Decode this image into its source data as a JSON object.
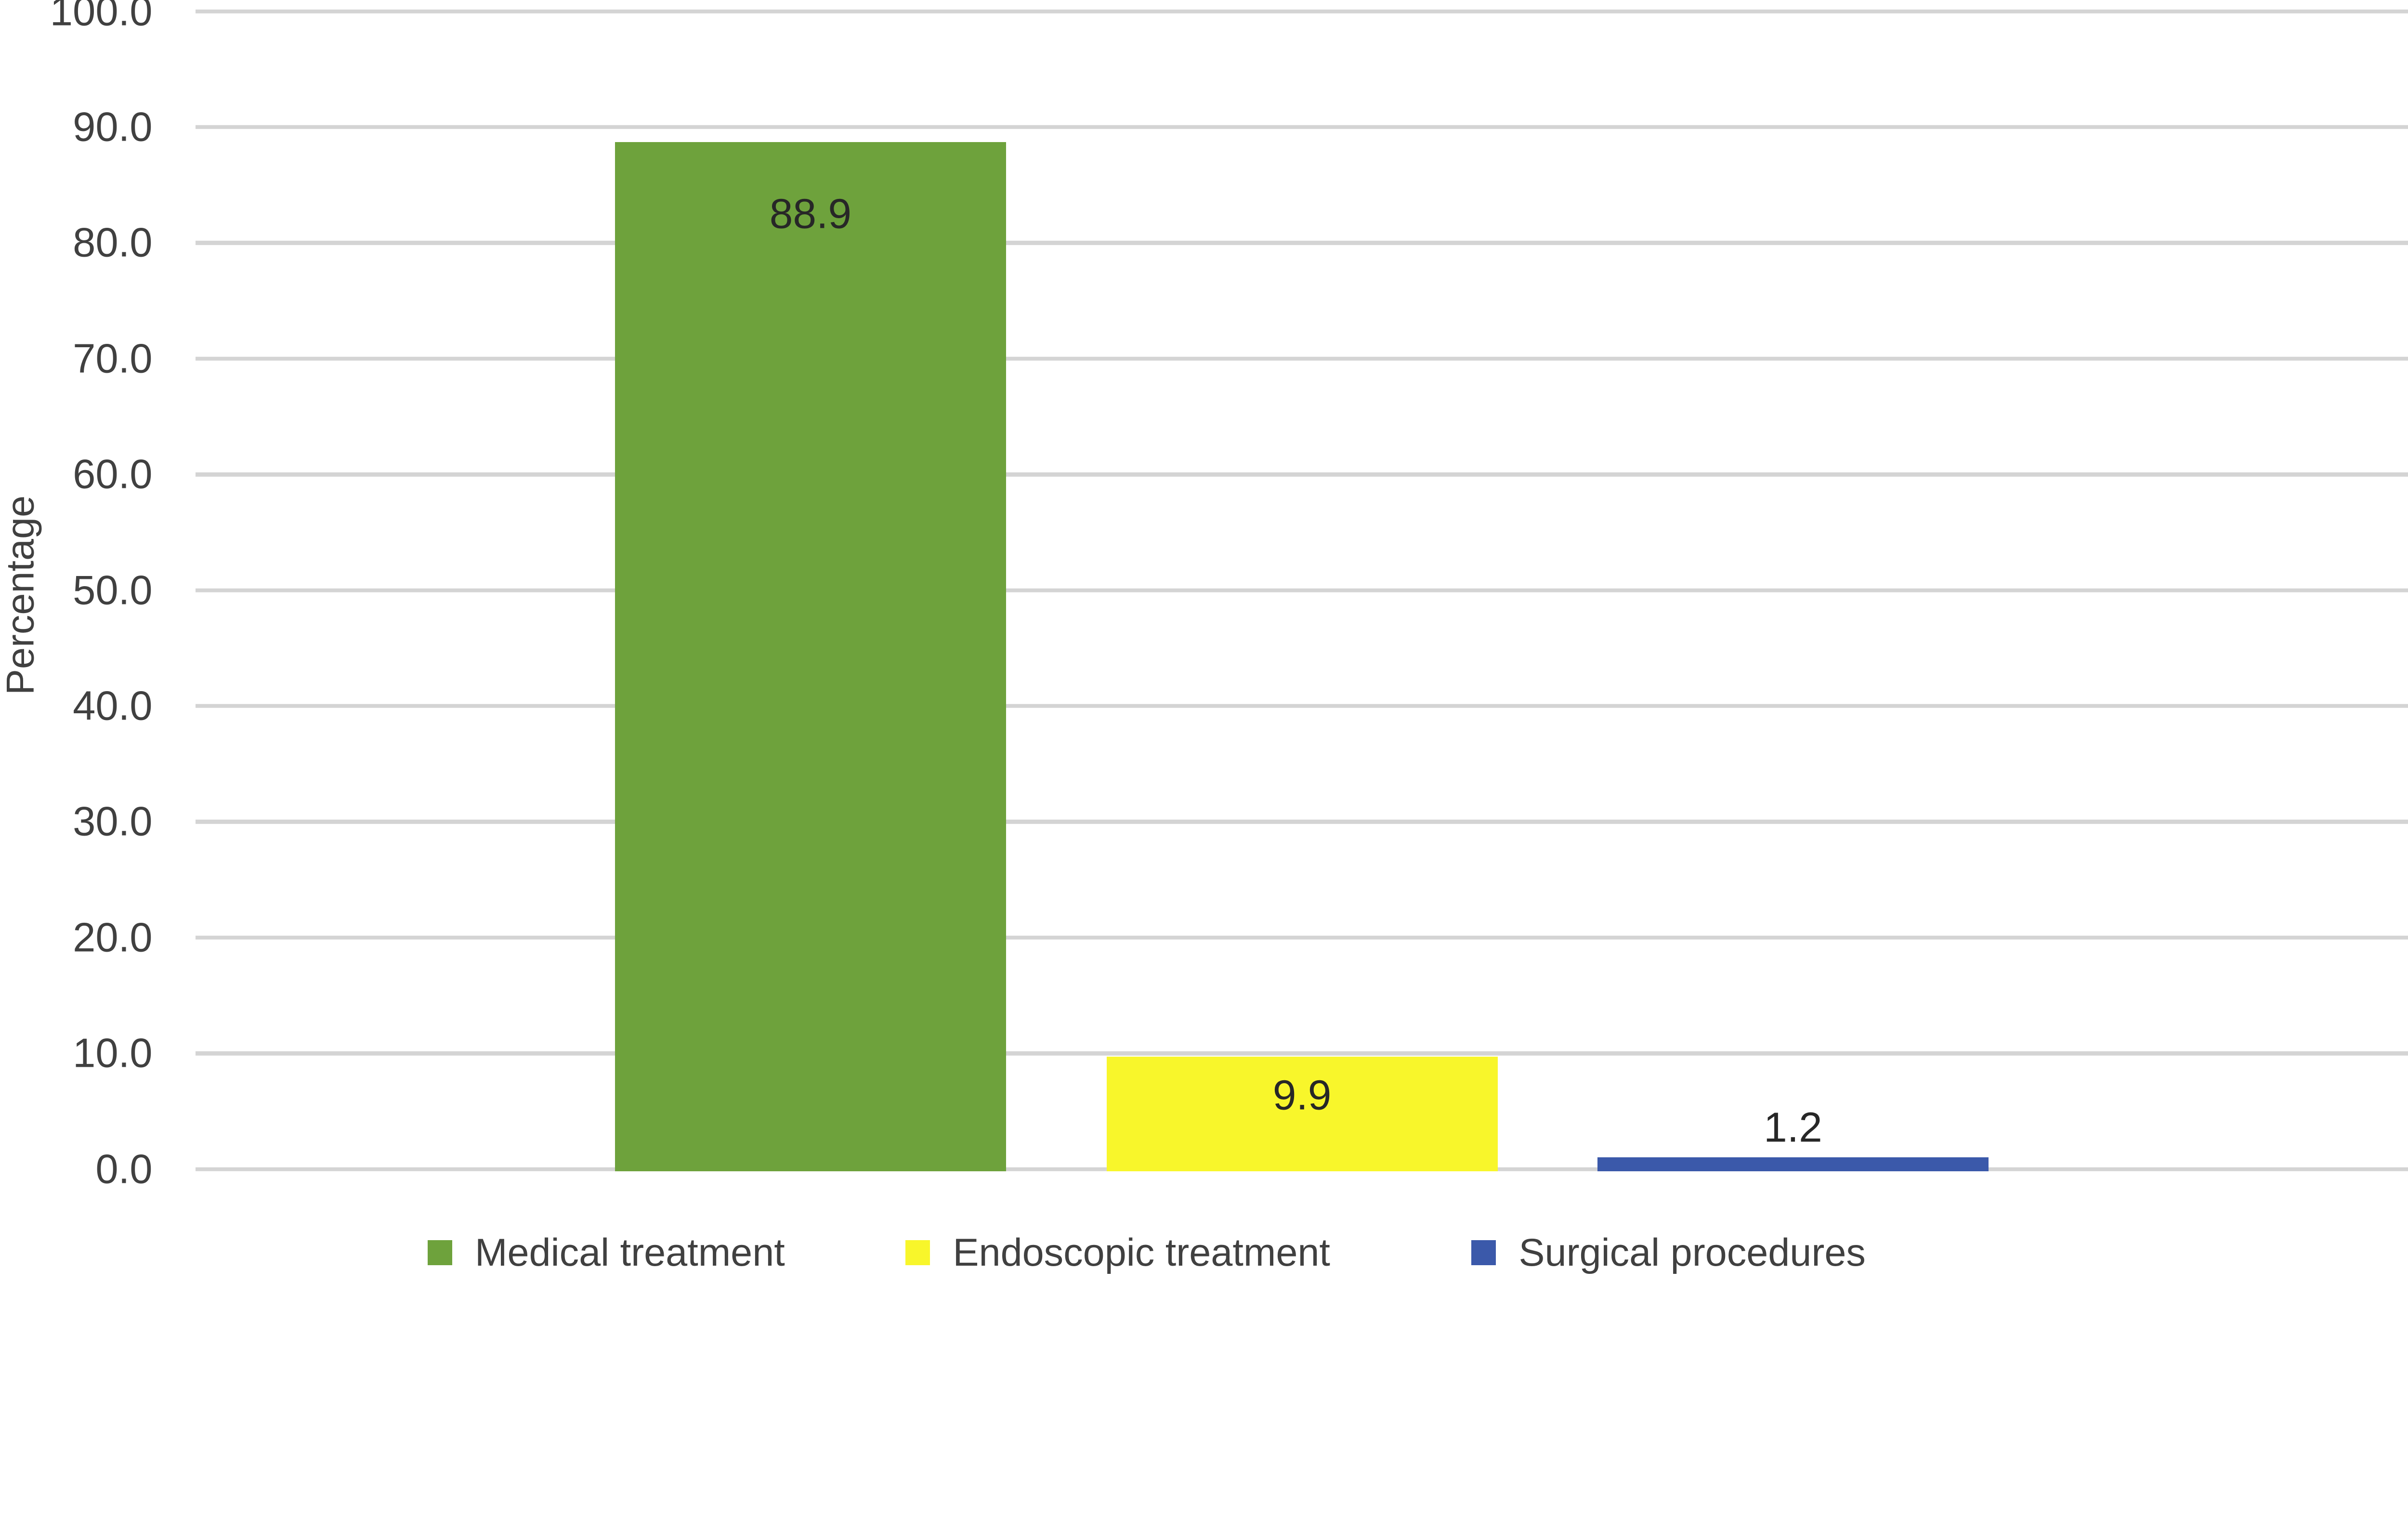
{
  "chart_data": {
    "type": "bar",
    "title": "",
    "xlabel": "",
    "ylabel": "Percentage",
    "categories": [
      "Medical treatment",
      "Endoscopic treatment",
      "Surgical procedures"
    ],
    "values": [
      88.9,
      9.9,
      1.2
    ],
    "data_labels": [
      "88.9",
      "9.9",
      "1.2"
    ],
    "bar_colors": [
      "#6EA23C",
      "#F8F62B",
      "#3B59AA"
    ],
    "ylim": [
      0,
      100
    ],
    "ytick_interval": 10,
    "ytick_labels": [
      "0.0",
      "10.0",
      "20.0",
      "30.0",
      "40.0",
      "50.0",
      "60.0",
      "70.0",
      "80.0",
      "90.0",
      "100.0"
    ],
    "grid": "horizontal",
    "gridline_color": "#D4D4D4",
    "axis_text_color": "#404040",
    "data_label_color": "#272727",
    "legend_position": "bottom",
    "legend": [
      {
        "label": "Medical treatment",
        "color": "#6EA23C"
      },
      {
        "label": "Endoscopic treatment",
        "color": "#F8F62B"
      },
      {
        "label": "Surgical procedures",
        "color": "#3B59AA"
      }
    ]
  }
}
